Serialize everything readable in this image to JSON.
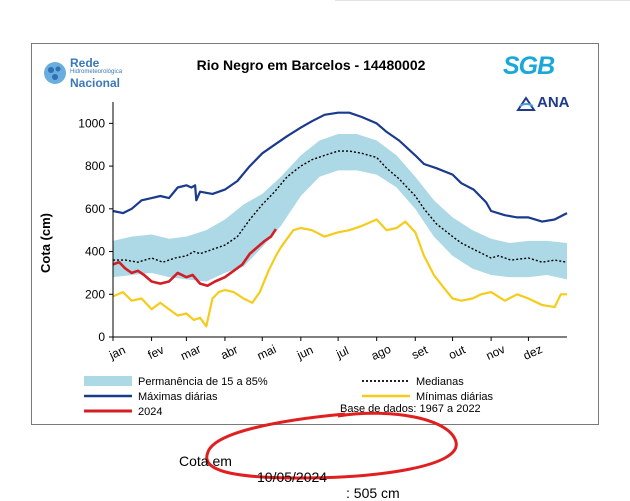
{
  "page": {
    "caption_label": "Cota em",
    "caption_date": "10/05/2024",
    "caption_value": ": 505 cm"
  },
  "logos": {
    "rede_line1": "Rede",
    "rede_line2": "Hidrometeorológica",
    "rede_line3": "Nacional",
    "sgb": "SGB",
    "ana": "ANA"
  },
  "colors": {
    "band": "#add8e6",
    "max": "#1a3a8c",
    "min": "#f5cc1b",
    "current": "#d21f26",
    "median": "#000000",
    "annotation": "#e02020"
  },
  "chart_data": {
    "type": "line",
    "title": "Rio Negro em Barcelos - 14480002",
    "ylabel": "Cota (cm)",
    "xlabel": "",
    "ylim": [
      0,
      1100
    ],
    "yticks": [
      0,
      200,
      400,
      600,
      800,
      1000
    ],
    "xlim": [
      0,
      365
    ],
    "month_labels": [
      "jan",
      "fev",
      "mar",
      "abr",
      "mai",
      "jun",
      "jul",
      "ago",
      "set",
      "out",
      "nov",
      "dez"
    ],
    "month_days": [
      0,
      31,
      59,
      90,
      120,
      151,
      181,
      212,
      243,
      273,
      304,
      334
    ],
    "grid": false,
    "legend_position": "bottom",
    "band": {
      "name": "Permanência de 15 a 85%",
      "x": [
        0,
        15,
        31,
        45,
        59,
        75,
        90,
        105,
        120,
        135,
        151,
        166,
        181,
        196,
        212,
        228,
        243,
        258,
        273,
        289,
        304,
        319,
        334,
        349,
        365
      ],
      "upper": [
        450,
        470,
        480,
        460,
        470,
        500,
        550,
        620,
        670,
        750,
        850,
        920,
        950,
        950,
        920,
        850,
        750,
        640,
        560,
        500,
        460,
        440,
        450,
        450,
        440
      ],
      "lower": [
        280,
        290,
        300,
        280,
        270,
        260,
        300,
        330,
        420,
        520,
        660,
        750,
        780,
        780,
        760,
        700,
        600,
        470,
        380,
        320,
        290,
        280,
        280,
        290,
        270
      ]
    },
    "series": [
      {
        "name": "Máximas diárias",
        "x": [
          0,
          8,
          15,
          23,
          31,
          38,
          45,
          52,
          59,
          63,
          66,
          67,
          70,
          80,
          90,
          100,
          110,
          120,
          130,
          140,
          151,
          160,
          170,
          181,
          190,
          200,
          212,
          220,
          230,
          243,
          250,
          260,
          273,
          280,
          290,
          300,
          304,
          315,
          325,
          334,
          345,
          355,
          365
        ],
        "y": [
          590,
          580,
          600,
          640,
          650,
          660,
          650,
          700,
          710,
          700,
          710,
          640,
          680,
          670,
          690,
          730,
          800,
          860,
          900,
          940,
          980,
          1010,
          1040,
          1050,
          1050,
          1030,
          1000,
          960,
          920,
          850,
          810,
          790,
          760,
          720,
          690,
          630,
          590,
          570,
          560,
          560,
          540,
          550,
          580
        ]
      },
      {
        "name": "Medianas",
        "x": [
          0,
          10,
          20,
          31,
          40,
          50,
          59,
          65,
          70,
          80,
          90,
          100,
          110,
          120,
          130,
          140,
          151,
          160,
          170,
          181,
          190,
          200,
          212,
          220,
          230,
          243,
          250,
          260,
          273,
          280,
          290,
          304,
          310,
          320,
          334,
          345,
          355,
          365
        ],
        "y": [
          360,
          360,
          350,
          370,
          350,
          370,
          380,
          400,
          390,
          410,
          430,
          470,
          550,
          620,
          680,
          750,
          800,
          830,
          850,
          870,
          870,
          860,
          840,
          790,
          740,
          660,
          600,
          530,
          470,
          440,
          410,
          370,
          380,
          360,
          370,
          350,
          360,
          350
        ]
      },
      {
        "name": "Mínimas diárias",
        "x": [
          0,
          8,
          15,
          23,
          31,
          38,
          45,
          52,
          59,
          65,
          70,
          75,
          80,
          85,
          90,
          97,
          105,
          112,
          118,
          125,
          131,
          135,
          140,
          145,
          151,
          160,
          170,
          181,
          190,
          200,
          212,
          220,
          228,
          235,
          243,
          250,
          258,
          266,
          273,
          280,
          289,
          296,
          304,
          315,
          325,
          334,
          345,
          355,
          360,
          365
        ],
        "y": [
          190,
          210,
          170,
          180,
          130,
          160,
          130,
          100,
          110,
          80,
          90,
          50,
          180,
          210,
          220,
          210,
          180,
          160,
          210,
          310,
          380,
          420,
          460,
          500,
          510,
          500,
          470,
          490,
          500,
          520,
          550,
          500,
          510,
          540,
          490,
          380,
          290,
          230,
          180,
          170,
          180,
          200,
          210,
          170,
          200,
          180,
          150,
          140,
          200,
          200
        ]
      },
      {
        "name": "2024",
        "x": [
          0,
          5,
          10,
          15,
          20,
          25,
          31,
          38,
          45,
          52,
          59,
          64,
          70,
          76,
          82,
          90,
          97,
          104,
          110,
          116,
          122,
          127,
          131
        ],
        "y": [
          340,
          350,
          320,
          300,
          310,
          290,
          260,
          250,
          260,
          300,
          280,
          290,
          250,
          240,
          260,
          280,
          310,
          340,
          390,
          420,
          450,
          470,
          505
        ]
      }
    ],
    "annotation": "Base de dados: 1967 a 2022"
  }
}
